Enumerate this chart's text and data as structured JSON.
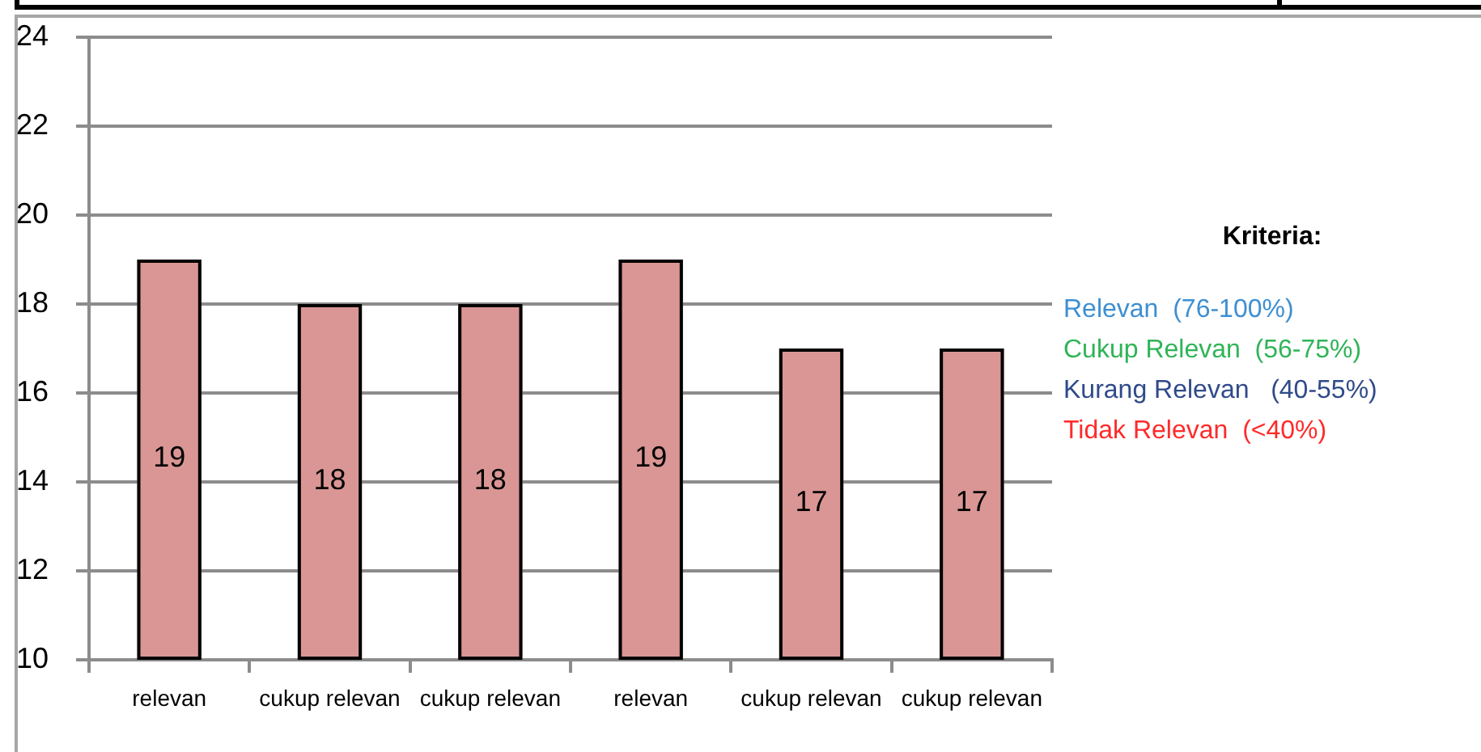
{
  "chart_data": {
    "type": "bar",
    "categories": [
      "relevan",
      "cukup relevan",
      "cukup relevan",
      "relevan",
      "cukup relevan",
      "cukup relevan"
    ],
    "values": [
      19,
      18,
      18,
      19,
      17,
      17
    ],
    "color": "#d99694",
    "ylim": [
      10,
      24
    ],
    "yticks": [
      10,
      12,
      14,
      16,
      18,
      20,
      22,
      24
    ],
    "grid": "y",
    "data_labels": true,
    "annotations": [
      "Kriteria:",
      "Relevan  (76-100%)",
      "Cukup Relevan  (56-75%)",
      "Kurang Relevan   (40-55%)",
      "Tidak Relevan  (<40%)"
    ]
  }
}
